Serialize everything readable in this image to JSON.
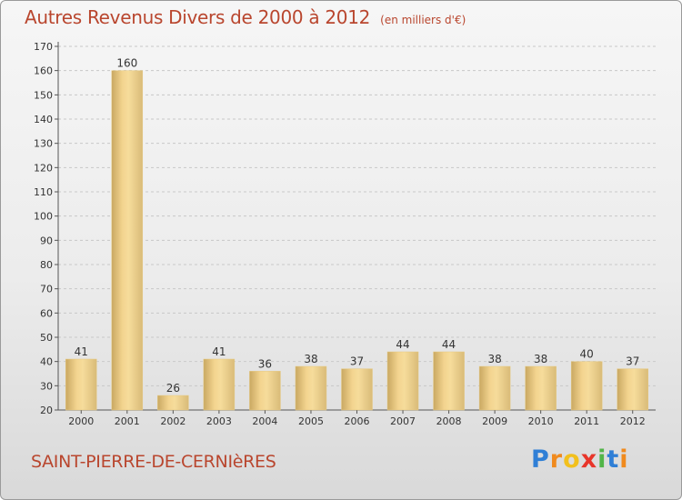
{
  "header": {
    "title": "Autres Revenus Divers de 2000 à 2012",
    "subtitle": "(en milliers d'€)"
  },
  "commune": "SAINT-PIERRE-DE-CERNIèRES",
  "logo": {
    "letters": [
      {
        "ch": "P",
        "color": "#2f7fd6"
      },
      {
        "ch": "r",
        "color": "#f08a1d"
      },
      {
        "ch": "o",
        "color": "#f2c01d"
      },
      {
        "ch": "x",
        "color": "#e8352a"
      },
      {
        "ch": "i",
        "color": "#52b548"
      },
      {
        "ch": "t",
        "color": "#2f7fd6"
      },
      {
        "ch": "i",
        "color": "#f08a1d"
      }
    ]
  },
  "chart_data": {
    "type": "bar",
    "title": "Autres Revenus Divers de 2000 à 2012",
    "subtitle": "(en milliers d'€)",
    "categories": [
      "2000",
      "2001",
      "2002",
      "2003",
      "2004",
      "2005",
      "2006",
      "2007",
      "2008",
      "2009",
      "2010",
      "2011",
      "2012"
    ],
    "values": [
      41,
      160,
      26,
      41,
      36,
      38,
      37,
      44,
      44,
      38,
      38,
      40,
      37
    ],
    "ylim": [
      20,
      170
    ],
    "yticks": [
      20,
      30,
      40,
      50,
      60,
      70,
      80,
      90,
      100,
      110,
      120,
      130,
      140,
      150,
      160,
      170
    ],
    "grid": "horizontal dashed",
    "colors": {
      "bar_light": "#f6dc9b",
      "bar_dark": "#c9a862",
      "grid": "#c8c8c8",
      "axis": "#555555"
    }
  }
}
